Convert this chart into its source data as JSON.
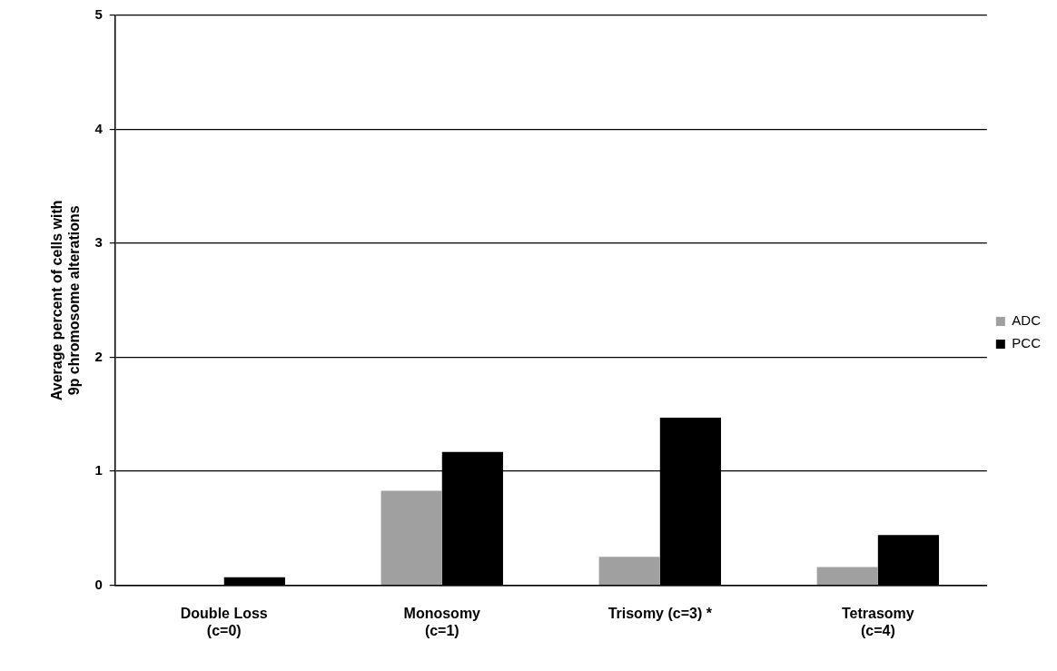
{
  "chart_data": {
    "type": "bar",
    "ylabel": "Average percent of cells with\n9p chromosome alterations",
    "categories": [
      "Double Loss\n(c=0)",
      "Monosomy\n(c=1)",
      "Trisomy (c=3) *",
      "Tetrasomy\n(c=4)"
    ],
    "series": [
      {
        "name": "ADC",
        "color": "#a0a0a0",
        "values": [
          0,
          0.83,
          0.25,
          0.16
        ]
      },
      {
        "name": "PCC",
        "color": "#000000",
        "values": [
          0.07,
          1.17,
          1.47,
          0.44
        ]
      }
    ],
    "ylim": [
      0,
      5
    ],
    "yticks": [
      0,
      1,
      2,
      3,
      4,
      5
    ],
    "grid": "y",
    "legend": "right"
  }
}
